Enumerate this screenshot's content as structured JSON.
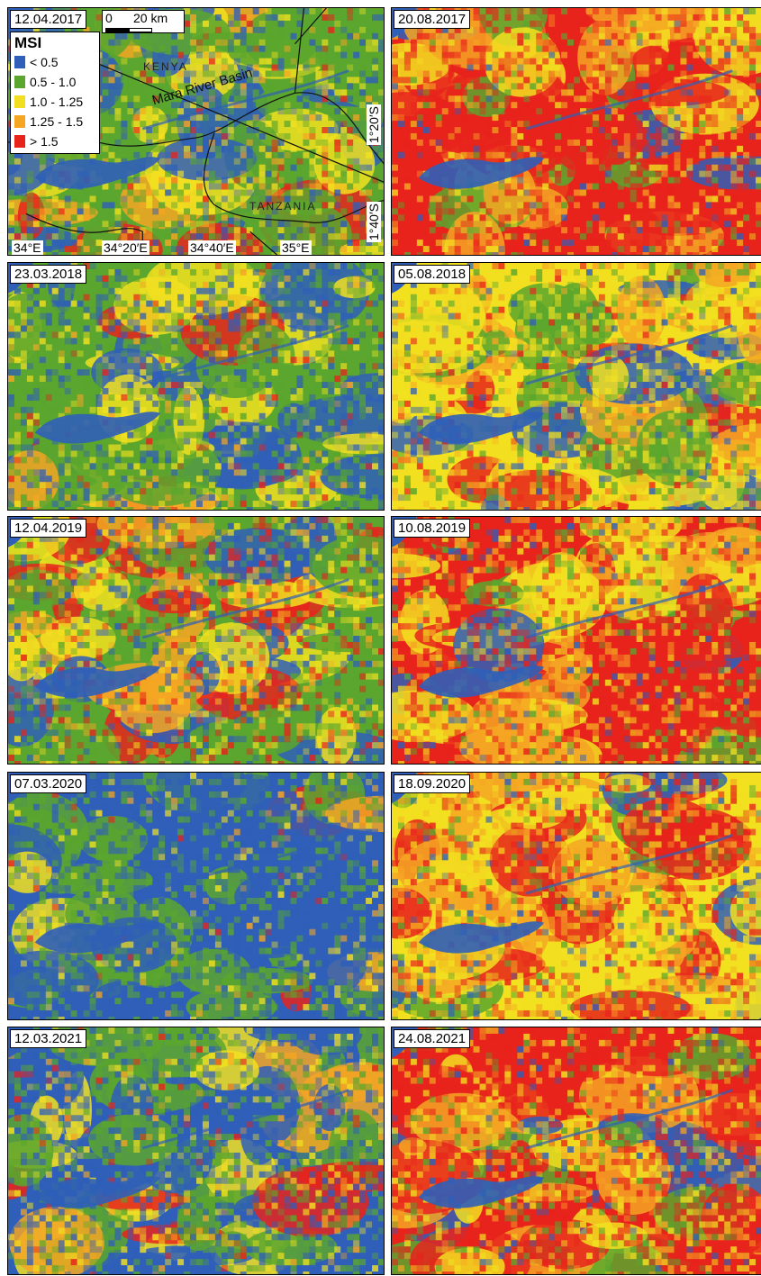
{
  "legend": {
    "title": "MSI",
    "items": [
      {
        "label": "< 0.5",
        "color": "#2f5fb8"
      },
      {
        "label": "0.5 - 1.0",
        "color": "#5aa62e"
      },
      {
        "label": "1.0 - 1.25",
        "color": "#f2e020"
      },
      {
        "label": "1.25 - 1.5",
        "color": "#f5a623"
      },
      {
        "label": "> 1.5",
        "color": "#e8231c"
      }
    ]
  },
  "scale": {
    "zero": "0",
    "distance": "20 km"
  },
  "labels": {
    "kenya": "KENYA",
    "tanzania": "TANZANIA",
    "basin": "Mara River Basin"
  },
  "coords": {
    "lon": [
      "34°E",
      "34°20′E",
      "34°40′E",
      "35°E"
    ],
    "lat": [
      "1°20′S",
      "1°40′S"
    ]
  },
  "panels": [
    {
      "date": "12.04.2017",
      "palette": [
        0.22,
        0.4,
        0.2,
        0.1,
        0.08
      ]
    },
    {
      "date": "20.08.2017",
      "palette": [
        0.05,
        0.1,
        0.12,
        0.13,
        0.6
      ]
    },
    {
      "date": "23.03.2018",
      "palette": [
        0.3,
        0.4,
        0.18,
        0.06,
        0.06
      ]
    },
    {
      "date": "05.08.2018",
      "palette": [
        0.1,
        0.22,
        0.4,
        0.15,
        0.13
      ]
    },
    {
      "date": "12.04.2019",
      "palette": [
        0.18,
        0.28,
        0.2,
        0.12,
        0.22
      ]
    },
    {
      "date": "10.08.2019",
      "palette": [
        0.08,
        0.15,
        0.22,
        0.2,
        0.35
      ]
    },
    {
      "date": "07.03.2020",
      "palette": [
        0.48,
        0.38,
        0.08,
        0.04,
        0.02
      ]
    },
    {
      "date": "18.09.2020",
      "palette": [
        0.08,
        0.14,
        0.32,
        0.18,
        0.28
      ]
    },
    {
      "date": "12.03.2021",
      "palette": [
        0.4,
        0.33,
        0.17,
        0.06,
        0.04
      ]
    },
    {
      "date": "24.08.2021",
      "palette": [
        0.07,
        0.13,
        0.25,
        0.17,
        0.38
      ]
    }
  ]
}
